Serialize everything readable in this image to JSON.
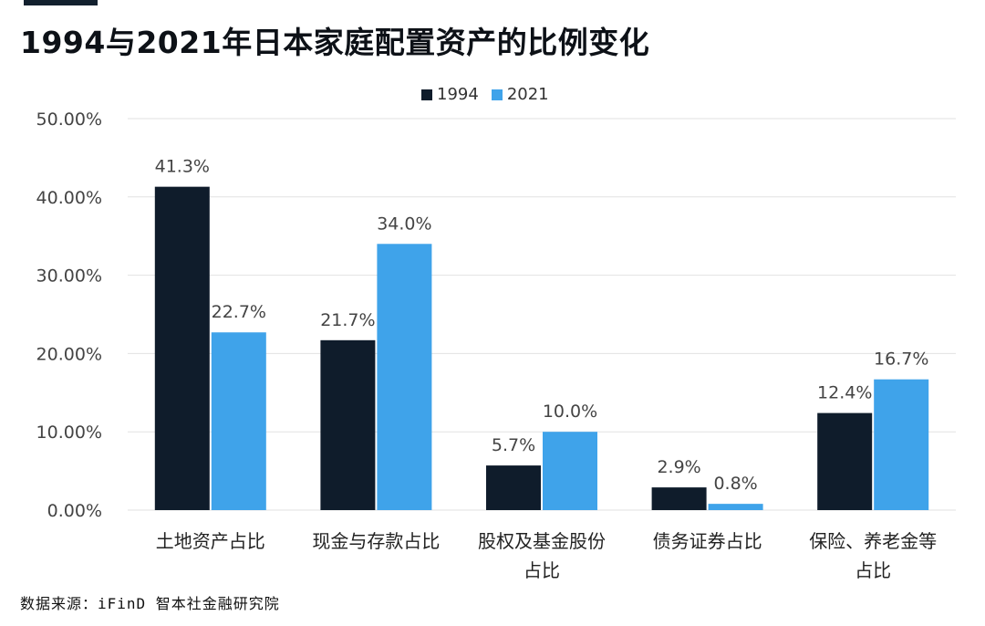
{
  "title": "1994与2021年日本家庭配置资产的比例变化",
  "source": "数据来源：iFinD 智本社金融研究院",
  "colors": {
    "s1994": "#0f1c2b",
    "s2021": "#3fa3ea",
    "grid": "#e2e2e2",
    "text": "#444444"
  },
  "chart_data": {
    "type": "bar",
    "title": "1994与2021年日本家庭配置资产的比例变化",
    "categories": [
      "土地资产占比",
      "现金与存款占比",
      "股权及基金股份占比",
      "债务证券占比",
      "保险、养老金等占比"
    ],
    "category_lines": [
      [
        "土地资产占比"
      ],
      [
        "现金与存款占比"
      ],
      [
        "股权及基金股份",
        "占比"
      ],
      [
        "债务证券占比"
      ],
      [
        "保险、养老金等",
        "占比"
      ]
    ],
    "series": [
      {
        "name": "1994",
        "values": [
          41.3,
          21.7,
          5.7,
          2.9,
          12.4
        ],
        "labels": [
          "41.3%",
          "21.7%",
          "5.7%",
          "2.9%",
          "12.4%"
        ]
      },
      {
        "name": "2021",
        "values": [
          22.7,
          34.0,
          10.0,
          0.8,
          16.7
        ],
        "labels": [
          "22.7%",
          "34.0%",
          "10.0%",
          "0.8%",
          "16.7%"
        ]
      }
    ],
    "yticks": [
      "0.00%",
      "10.00%",
      "20.00%",
      "30.00%",
      "40.00%",
      "50.00%"
    ],
    "ylim": [
      0,
      50
    ],
    "grid": true,
    "legend": "top-center"
  }
}
